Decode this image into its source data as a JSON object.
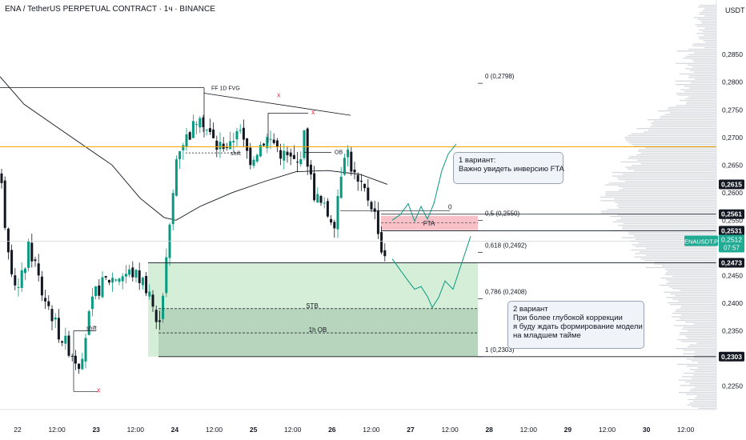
{
  "header": {
    "title": "ENA / TetherUS PERPETUAL CONTRACT · 1ч · BINANCE",
    "currency": "USDT"
  },
  "chart_data": {
    "type": "candlestick",
    "symbol": "ENAUSDT.P",
    "timeframe": "1ч",
    "exchange": "BINANCE",
    "ylim": [
      0.221,
      0.293
    ],
    "y_ticks": [
      "0,2850",
      "0,2800",
      "0,2750",
      "0,2700",
      "0,2650",
      "0,2600",
      "0,2550",
      "0,2500",
      "0,2450",
      "0,2400",
      "0,2350",
      "0,2300",
      "0,2250"
    ],
    "x_ticks": [
      "22",
      "12:00",
      "23",
      "12:00",
      "24",
      "12:00",
      "25",
      "12:00",
      "26",
      "12:00",
      "27",
      "12:00",
      "28",
      "12:00",
      "29",
      "12:00",
      "30",
      "12:00"
    ],
    "x_ticks_bold": [
      "23",
      "24",
      "25",
      "26",
      "27",
      "28",
      "29",
      "30"
    ],
    "price_badges": [
      {
        "label": "0,2615",
        "value": 0.2615,
        "style": "dark"
      },
      {
        "label": "0,2561",
        "value": 0.2561,
        "style": "dark"
      },
      {
        "label": "0,2531",
        "value": 0.2531,
        "style": "dark"
      },
      {
        "label": "0,2473",
        "value": 0.2473,
        "style": "dark"
      },
      {
        "label": "0,2303",
        "value": 0.2303,
        "style": "dark"
      }
    ],
    "current_price": {
      "symbol": "ENAUSDT.P",
      "label": "0,2512",
      "countdown": "07:57",
      "value": 0.2512,
      "color": "#22ab94"
    },
    "fib_levels": [
      {
        "label": "0 (0,2798)",
        "value": 0.2798
      },
      {
        "label": "0,5 (0,2550)",
        "value": 0.255
      },
      {
        "label": "0,618 (0,2492)",
        "value": 0.2492
      },
      {
        "label": "0,786 (0,2408)",
        "value": 0.2408
      },
      {
        "label": "1 (0,2303)",
        "value": 0.2303
      }
    ],
    "zone_labels": {
      "fta": "FTA",
      "stb": "STB",
      "ob_1h": "1h OB",
      "ob": "OB",
      "ff_fvg": "FF 1D FVG",
      "shift": "shift",
      "zero": "0",
      "x_mark": "x"
    },
    "annotations": [
      {
        "id": "variant1",
        "lines": [
          "1 вариант:",
          "Важно увидеть инверсию FTA"
        ]
      },
      {
        "id": "variant2",
        "lines": [
          "2 вариант",
          "При более глубокой коррекции",
          "я буду ждать формирование модели",
          "на младшем тайме"
        ]
      }
    ],
    "colors": {
      "up": "#089981",
      "down": "#131722",
      "ma": "#131722",
      "orange_line": "#f7a600",
      "green_zone": "#b7e3bd",
      "red_zone": "#f7b6bd",
      "path": "#089981",
      "x_mark": "#f23645"
    }
  }
}
